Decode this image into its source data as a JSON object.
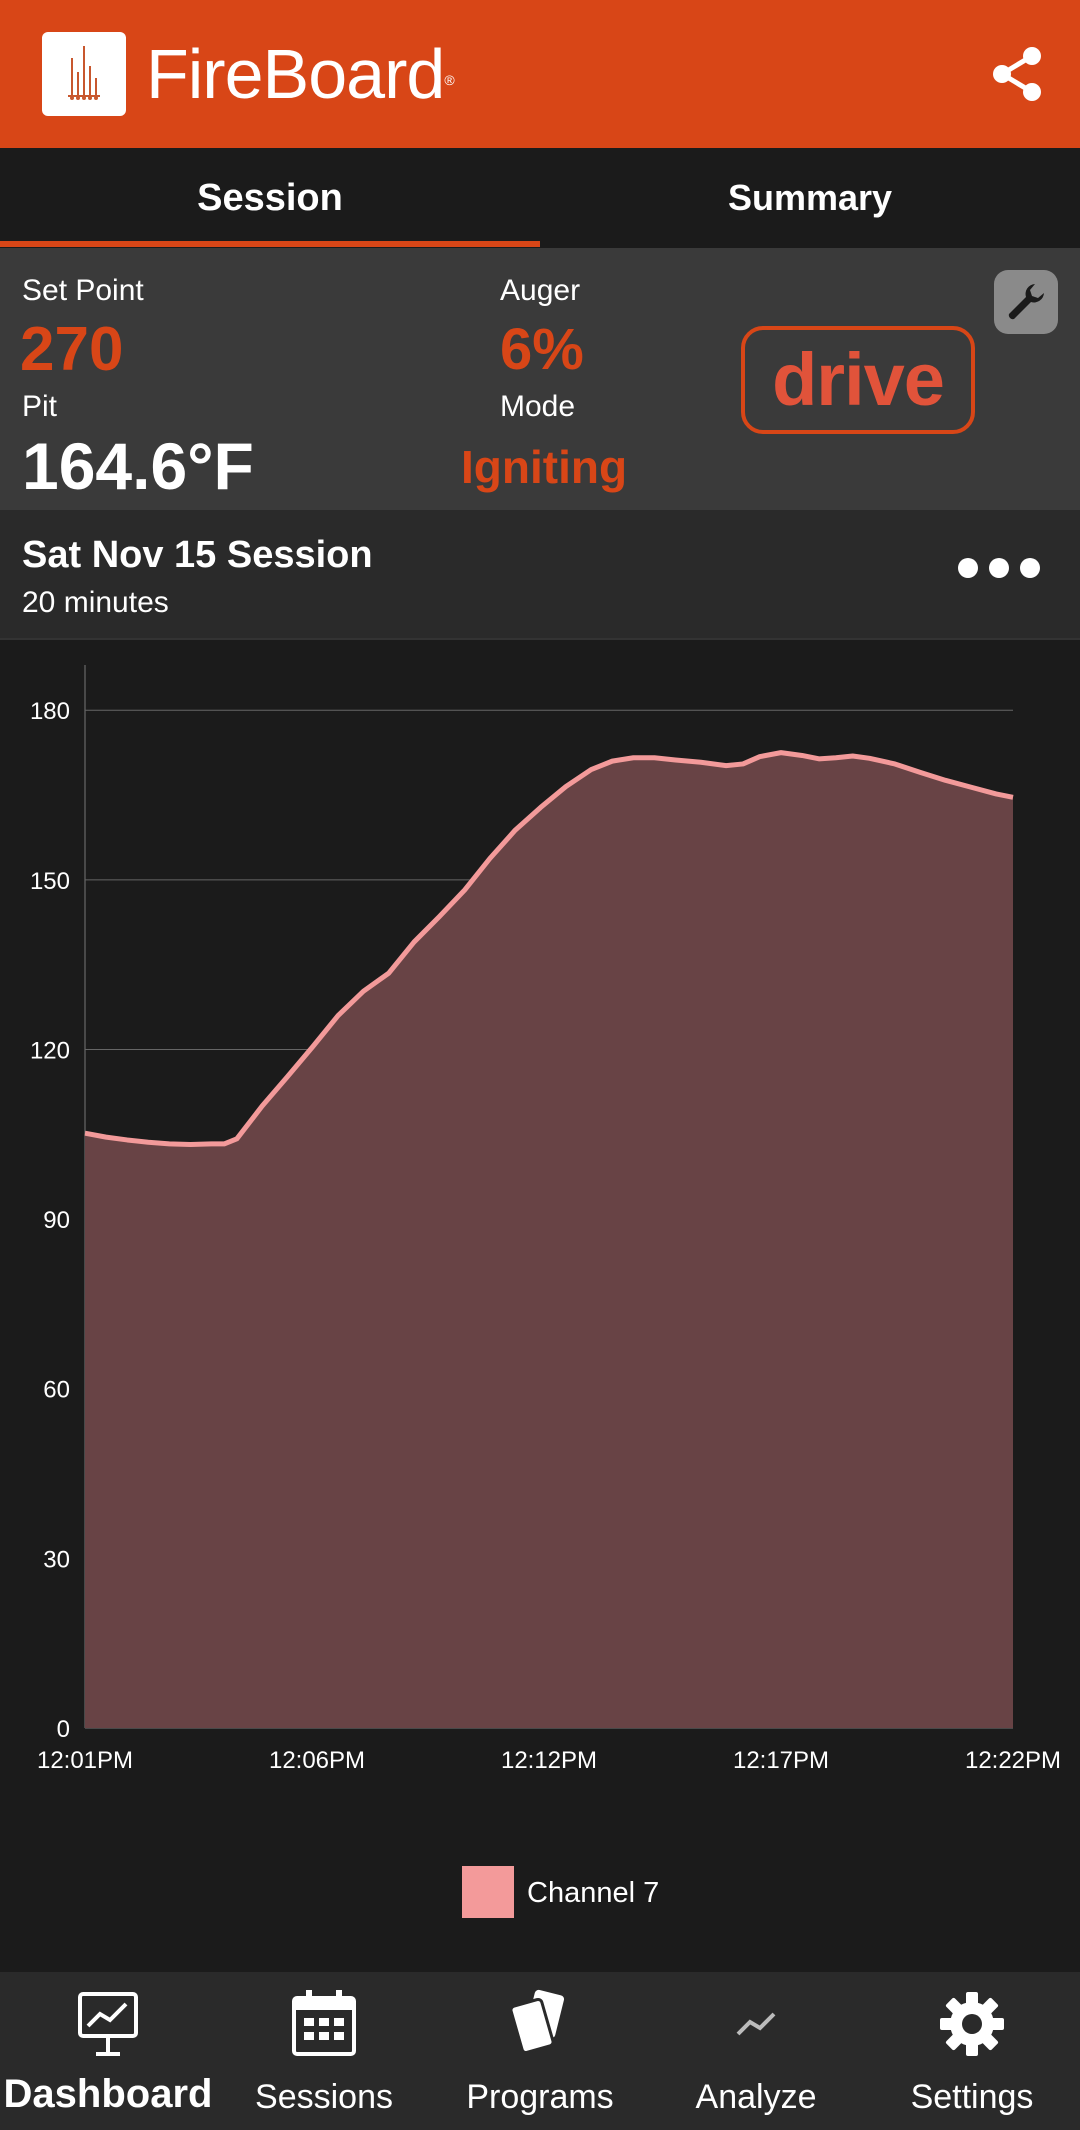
{
  "header": {
    "brand": "FireBoard",
    "registered_mark": "®",
    "icons": {
      "logo": "fireboard-logo-icon",
      "share": "share-icon"
    },
    "accent_color": "#d84617"
  },
  "tabs": [
    {
      "label": "Session",
      "active": true
    },
    {
      "label": "Summary",
      "active": false
    }
  ],
  "status": {
    "set_point_label": "Set Point",
    "set_point_value": "270",
    "pit_label": "Pit",
    "pit_value": "164.6°F",
    "auger_label": "Auger",
    "auger_value": "6%",
    "mode_label": "Mode",
    "mode_value": "Igniting",
    "drive_label": "drive",
    "icons": {
      "wrench": "wrench-icon"
    }
  },
  "session": {
    "title": "Sat Nov 15 Session",
    "duration": "20 minutes",
    "icons": {
      "more": "more-icon"
    }
  },
  "chart_data": {
    "type": "area",
    "y_ticks": [
      "180",
      "150",
      "120",
      "90",
      "60",
      "30",
      "0"
    ],
    "x_ticks": [
      "12:01PM",
      "12:06PM",
      "12:12PM",
      "12:17PM",
      "12:22PM"
    ],
    "ylim": [
      0,
      188
    ],
    "grid": true,
    "legend_position": "bottom",
    "series": [
      {
        "name": "Channel 7",
        "color": "#f39a9a",
        "fill": "#684345",
        "t": [
          0,
          0.5,
          1,
          1.5,
          2,
          2.5,
          3,
          3.3,
          3.6,
          4.2,
          4.8,
          5.4,
          6.0,
          6.6,
          7.2,
          7.8,
          8.4,
          9.0,
          9.6,
          10.2,
          10.8,
          11.4,
          12.0,
          12.5,
          13.0,
          13.5,
          14.0,
          14.6,
          15.2,
          15.6,
          16.0,
          16.5,
          17.0,
          17.4,
          17.8,
          18.2,
          18.6,
          19.2,
          19.8,
          20.4,
          21.0,
          21.6,
          22.0
        ],
        "x": [
          "12:01PM",
          "",
          "",
          "",
          "",
          "",
          "",
          "",
          "",
          "",
          "",
          "12:06PM",
          "",
          "",
          "",
          "",
          "",
          "",
          "",
          "",
          "",
          "",
          "12:12PM",
          "",
          "",
          "",
          "",
          "",
          "",
          "",
          "",
          "",
          "12:17PM",
          "",
          "",
          "",
          "",
          "",
          "",
          "",
          "",
          "",
          "12:22PM"
        ],
        "values": [
          105.2,
          104.5,
          104.0,
          103.6,
          103.3,
          103.2,
          103.3,
          103.3,
          104.2,
          110.0,
          115.2,
          120.5,
          126.0,
          130.3,
          133.5,
          139.0,
          143.5,
          148.2,
          153.8,
          158.8,
          162.8,
          166.5,
          169.5,
          171.0,
          171.6,
          171.6,
          171.2,
          170.8,
          170.2,
          170.5,
          171.8,
          172.5,
          172.0,
          171.4,
          171.6,
          171.9,
          171.5,
          170.5,
          169.0,
          167.6,
          166.4,
          165.2,
          164.6
        ]
      }
    ]
  },
  "nav": [
    {
      "label": "Dashboard",
      "icon": "dashboard-icon",
      "active": true
    },
    {
      "label": "Sessions",
      "icon": "calendar-icon",
      "active": false
    },
    {
      "label": "Programs",
      "icon": "programs-cards-icon",
      "active": false
    },
    {
      "label": "Analyze",
      "icon": "analyze-trend-icon",
      "active": false
    },
    {
      "label": "Settings",
      "icon": "gear-icon",
      "active": false
    }
  ]
}
